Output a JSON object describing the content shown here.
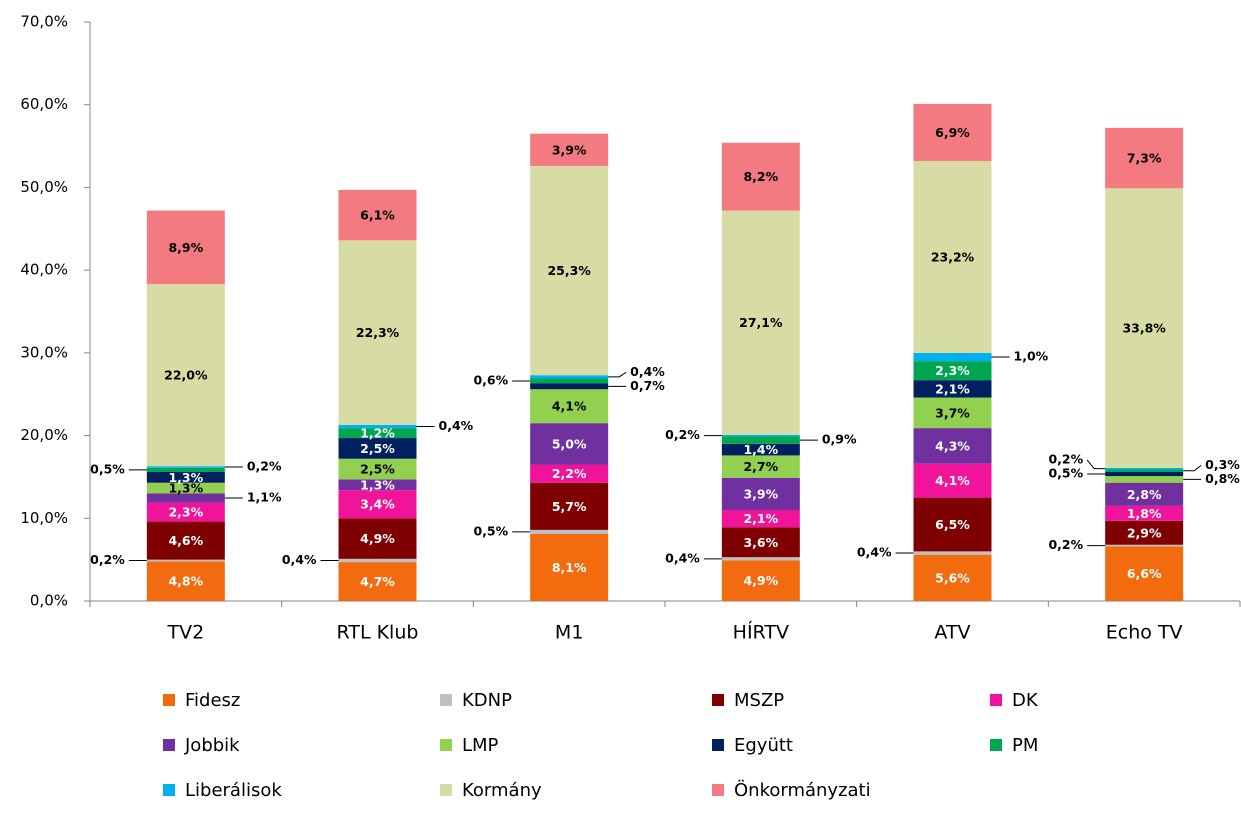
{
  "chart_data": {
    "type": "stacked_bar",
    "categories": [
      "TV2",
      "RTL Klub",
      "M1",
      "HÍRTV",
      "ATV",
      "Echo TV"
    ],
    "series": [
      {
        "name": "Fidesz",
        "color": "#f26b0f",
        "values": [
          4.8,
          4.7,
          8.1,
          4.9,
          5.6,
          6.6
        ],
        "value_labels": [
          "4,8%",
          "4,7%",
          "8,1%",
          "4,9%",
          "5,6%",
          "6,6%"
        ]
      },
      {
        "name": "KDNP",
        "color": "#bfbfbf",
        "values": [
          0.2,
          0.4,
          0.5,
          0.4,
          0.4,
          0.2
        ],
        "value_labels": [
          "0,2%",
          "0,4%",
          "0,5%",
          "0,4%",
          "0,4%",
          "0,2%"
        ]
      },
      {
        "name": "MSZP",
        "color": "#7f0000",
        "values": [
          4.6,
          4.9,
          5.7,
          3.6,
          6.5,
          2.9
        ],
        "value_labels": [
          "4,6%",
          "4,9%",
          "5,7%",
          "3,6%",
          "6,5%",
          "2,9%"
        ]
      },
      {
        "name": "DK",
        "color": "#f0149b",
        "values": [
          2.3,
          3.4,
          2.2,
          2.1,
          4.1,
          1.8
        ],
        "value_labels": [
          "2,3%",
          "3,4%",
          "2,2%",
          "2,1%",
          "4,1%",
          "1,8%"
        ]
      },
      {
        "name": "Jobbik",
        "color": "#7030a0",
        "values": [
          1.1,
          1.3,
          5.0,
          3.9,
          4.3,
          2.8
        ],
        "value_labels": [
          "1,1%",
          "1,3%",
          "5,0%",
          "3,9%",
          "4,3%",
          "2,8%"
        ]
      },
      {
        "name": "LMP",
        "color": "#92d050",
        "values": [
          1.3,
          2.5,
          4.1,
          2.7,
          3.7,
          0.8
        ],
        "value_labels": [
          "1,3%",
          "2,5%",
          "4,1%",
          "2,7%",
          "3,7%",
          "0,8%"
        ]
      },
      {
        "name": "Együtt",
        "color": "#002060",
        "values": [
          1.3,
          2.5,
          0.7,
          1.4,
          2.1,
          0.5
        ],
        "value_labels": [
          "1,3%",
          "2,5%",
          "0,7%",
          "1,4%",
          "2,1%",
          "0,5%"
        ]
      },
      {
        "name": "PM",
        "color": "#00a550",
        "values": [
          0.5,
          1.2,
          0.6,
          0.9,
          2.3,
          0.3
        ],
        "value_labels": [
          "0,5%",
          "1,2%",
          "0,6%",
          "0,9%",
          "2,3%",
          "0,3%"
        ]
      },
      {
        "name": "Liberálisok",
        "color": "#00b0f0",
        "values": [
          0.2,
          0.4,
          0.4,
          0.2,
          1.0,
          0.2
        ],
        "value_labels": [
          "0,2%",
          "0,4%",
          "0,4%",
          "0,2%",
          "1,0%",
          "0,2%"
        ]
      },
      {
        "name": "Kormány",
        "color": "#d7dca5",
        "values": [
          22.0,
          22.3,
          25.3,
          27.1,
          23.2,
          33.8
        ],
        "value_labels": [
          "22,0%",
          "22,3%",
          "25,3%",
          "27,1%",
          "23,2%",
          "33,8%"
        ]
      },
      {
        "name": "Önkormányzati",
        "color": "#f27a80",
        "values": [
          8.9,
          6.1,
          3.9,
          8.2,
          6.9,
          7.3
        ],
        "value_labels": [
          "8,9%",
          "6,1%",
          "3,9%",
          "8,2%",
          "6,9%",
          "7,3%"
        ]
      }
    ],
    "ylim": [
      0,
      70
    ],
    "yticks": [
      {
        "value": 0,
        "label": "0,0%"
      },
      {
        "value": 10,
        "label": "10,0%"
      },
      {
        "value": 20,
        "label": "20,0%"
      },
      {
        "value": 30,
        "label": "30,0%"
      },
      {
        "value": 40,
        "label": "40,0%"
      },
      {
        "value": 50,
        "label": "50,0%"
      },
      {
        "value": 60,
        "label": "60,0%"
      },
      {
        "value": 70,
        "label": "70,0%"
      }
    ],
    "legend": "bottom"
  }
}
